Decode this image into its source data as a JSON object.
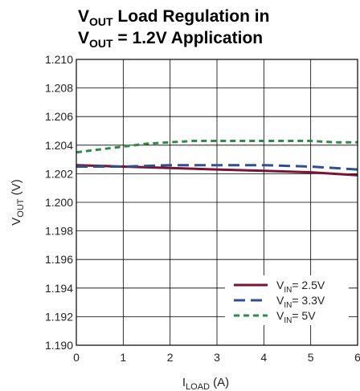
{
  "chart_data": {
    "type": "line",
    "title": {
      "line1": {
        "main": "V",
        "sub": "OUT",
        "rest": " Load Regulation in"
      },
      "line2": {
        "main": "V",
        "sub": "OUT",
        "rest": " = 1.2V Application"
      }
    },
    "xlabel": {
      "main": "I",
      "sub": "LOAD",
      "rest": " (A)"
    },
    "ylabel": {
      "main": "V",
      "sub": "OUT",
      "rest": " (V)"
    },
    "xlim": [
      0,
      6
    ],
    "ylim": [
      1.19,
      1.21
    ],
    "xticks": [
      "0",
      "1",
      "2",
      "3",
      "4",
      "5",
      "6"
    ],
    "yticks": [
      "1.190",
      "1.192",
      "1.194",
      "1.196",
      "1.198",
      "1.200",
      "1.202",
      "1.204",
      "1.206",
      "1.208",
      "1.210"
    ],
    "grid": true,
    "legend_position": "bottom-right",
    "series": [
      {
        "label": {
          "main": "V",
          "sub": "IN",
          "rest": "= 2.5V"
        },
        "color": "#7a1230",
        "dash": "solid",
        "x": [
          0,
          1,
          2,
          3,
          4,
          5,
          6
        ],
        "y": [
          1.2026,
          1.2025,
          1.2024,
          1.2023,
          1.2022,
          1.2021,
          1.2019
        ]
      },
      {
        "label": {
          "main": "V",
          "sub": "IN",
          "rest": "= 3.3V"
        },
        "color": "#2f4f95",
        "dash": "long",
        "x": [
          0,
          1,
          2,
          3,
          4,
          5,
          6
        ],
        "y": [
          1.2025,
          1.2025,
          1.2026,
          1.2026,
          1.2026,
          1.2025,
          1.2023
        ]
      },
      {
        "label": {
          "main": "V",
          "sub": "IN",
          "rest": "= 5V"
        },
        "color": "#2e8b45",
        "dash": "short",
        "x": [
          0,
          0.5,
          1,
          1.5,
          2,
          2.5,
          3,
          3.5,
          4,
          4.5,
          5,
          5.5,
          6
        ],
        "y": [
          1.2035,
          1.2037,
          1.2039,
          1.2041,
          1.2042,
          1.2043,
          1.2043,
          1.2043,
          1.2043,
          1.2043,
          1.2043,
          1.2042,
          1.2042
        ]
      }
    ]
  }
}
